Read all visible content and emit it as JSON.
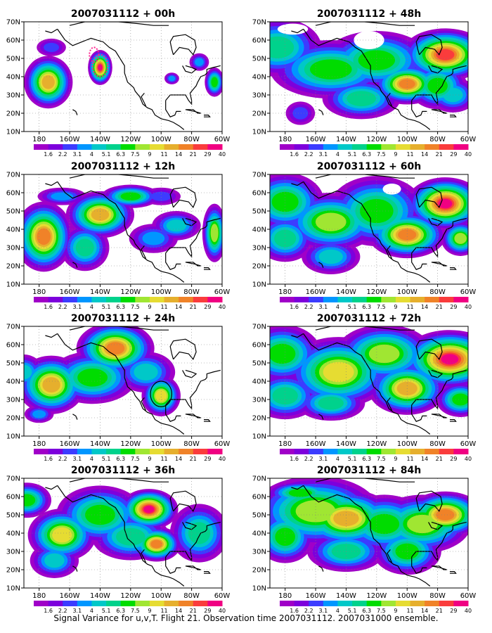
{
  "chart_data": {
    "type": "heatmap",
    "colorbar_labels": [
      "1.6",
      "2.2",
      "3.1",
      "4",
      "5.1",
      "6.3",
      "7.5",
      "9",
      "11",
      "14",
      "21",
      "29",
      "40"
    ],
    "colorbar_colors": [
      "#a000c8",
      "#7d00dc",
      "#3c3cff",
      "#0096ff",
      "#00c8c8",
      "#00d28c",
      "#00dc00",
      "#a0e632",
      "#e6dc32",
      "#e6af2d",
      "#f08228",
      "#fa3c3c",
      "#f00082"
    ],
    "x_ticks": [
      "180",
      "160W",
      "140W",
      "120W",
      "100W",
      "80W",
      "60W"
    ],
    "y_ticks": [
      "70N",
      "60N",
      "50N",
      "40N",
      "30N",
      "20N",
      "10N"
    ],
    "grid": true,
    "panels": [
      {
        "title": "2007031112 + 00h",
        "blobs": [
          [
            -174,
            37,
            10,
            9,
            2.2
          ],
          [
            -140,
            45,
            5,
            6,
            3.0
          ],
          [
            -75,
            48,
            4,
            3,
            0.8
          ],
          [
            -65,
            37,
            4,
            5,
            1.4
          ],
          [
            -93,
            39,
            3,
            2,
            0.7
          ],
          [
            -172,
            56,
            6,
            3,
            0.5
          ]
        ],
        "markers": [
          {
            "type": "dotted-ellipse",
            "lon": -144,
            "lat": 52,
            "rlon": 3,
            "rlat": 4
          },
          {
            "type": "dotted-ellipse",
            "lon": -140,
            "lat": 46,
            "rlon": 5,
            "rlat": 6
          }
        ]
      },
      {
        "title": "2007031112 + 48h",
        "blobs": [
          [
            -185,
            56,
            18,
            10,
            1.2
          ],
          [
            -150,
            44,
            25,
            10,
            1.6
          ],
          [
            -120,
            49,
            22,
            10,
            1.4
          ],
          [
            -100,
            36,
            14,
            7,
            2.6
          ],
          [
            -75,
            52,
            18,
            9,
            2.8
          ],
          [
            -80,
            35,
            12,
            8,
            1.6
          ],
          [
            -70,
            30,
            10,
            6,
            1.0
          ],
          [
            -130,
            28,
            16,
            7,
            1.2
          ],
          [
            -170,
            20,
            6,
            4,
            0.6
          ]
        ],
        "holes": [
          [
            -125,
            60,
            10,
            5
          ],
          [
            -175,
            66,
            10,
            3
          ]
        ]
      },
      {
        "title": "2007031112 + 12h",
        "blobs": [
          [
            -177,
            36,
            12,
            12,
            2.4
          ],
          [
            -140,
            48,
            14,
            8,
            2.2
          ],
          [
            -120,
            58,
            12,
            4,
            1.4
          ],
          [
            -150,
            30,
            10,
            8,
            1.2
          ],
          [
            -65,
            38,
            5,
            10,
            1.8
          ],
          [
            -90,
            42,
            10,
            5,
            0.9
          ],
          [
            -105,
            35,
            10,
            5,
            0.8
          ],
          [
            -165,
            58,
            10,
            3,
            0.7
          ],
          [
            -100,
            58,
            8,
            3,
            0.5
          ]
        ]
      },
      {
        "title": "2007031112 + 60h",
        "blobs": [
          [
            -180,
            55,
            16,
            10,
            1.4
          ],
          [
            -150,
            44,
            20,
            10,
            1.8
          ],
          [
            -120,
            50,
            20,
            12,
            1.6
          ],
          [
            -100,
            37,
            16,
            8,
            2.4
          ],
          [
            -75,
            54,
            16,
            9,
            3.0
          ],
          [
            -65,
            35,
            8,
            6,
            1.8
          ],
          [
            -150,
            25,
            12,
            6,
            1.1
          ],
          [
            -180,
            35,
            12,
            8,
            1.2
          ]
        ],
        "holes": [
          [
            -110,
            62,
            6,
            3
          ]
        ]
      },
      {
        "title": "2007031112 + 24h",
        "blobs": [
          [
            -172,
            38,
            14,
            10,
            2.2
          ],
          [
            -130,
            58,
            16,
            9,
            2.6
          ],
          [
            -145,
            42,
            18,
            9,
            1.4
          ],
          [
            -100,
            32,
            8,
            7,
            1.9
          ],
          [
            -110,
            45,
            12,
            7,
            1.1
          ],
          [
            -190,
            45,
            8,
            6,
            1.0
          ],
          [
            -180,
            22,
            6,
            3,
            0.8
          ]
        ],
        "markers": [
          {
            "type": "circle",
            "lon": -100,
            "lat": 33,
            "rlon": 7,
            "rlat": 7
          }
        ]
      },
      {
        "title": "2007031112 + 72h",
        "blobs": [
          [
            -182,
            55,
            16,
            10,
            1.6
          ],
          [
            -145,
            45,
            22,
            12,
            2.0
          ],
          [
            -115,
            55,
            20,
            10,
            1.8
          ],
          [
            -100,
            36,
            16,
            9,
            2.2
          ],
          [
            -72,
            52,
            20,
            10,
            3.0
          ],
          [
            -150,
            28,
            14,
            6,
            1.2
          ],
          [
            -180,
            32,
            14,
            8,
            1.2
          ],
          [
            -65,
            30,
            10,
            6,
            1.6
          ]
        ]
      },
      {
        "title": "2007031112 + 36h",
        "blobs": [
          [
            -165,
            39,
            14,
            9,
            2.0
          ],
          [
            -140,
            50,
            18,
            10,
            1.4
          ],
          [
            -108,
            53,
            12,
            7,
            3.0
          ],
          [
            -103,
            34,
            10,
            6,
            2.4
          ],
          [
            -188,
            58,
            10,
            6,
            1.4
          ],
          [
            -120,
            38,
            16,
            8,
            1.2
          ],
          [
            -75,
            40,
            12,
            10,
            1.3
          ],
          [
            -170,
            25,
            10,
            6,
            1.0
          ]
        ]
      },
      {
        "title": "2007031112 + 84h",
        "blobs": [
          [
            -160,
            52,
            26,
            12,
            1.8
          ],
          [
            -140,
            48,
            20,
            10,
            2.2
          ],
          [
            -115,
            45,
            18,
            10,
            1.6
          ],
          [
            -90,
            45,
            20,
            10,
            1.8
          ],
          [
            -75,
            50,
            16,
            8,
            2.6
          ],
          [
            -180,
            38,
            12,
            9,
            1.4
          ],
          [
            -140,
            30,
            16,
            7,
            1.3
          ],
          [
            -100,
            30,
            14,
            8,
            1.4
          ],
          [
            -170,
            62,
            14,
            4,
            1.4
          ]
        ]
      }
    ]
  },
  "caption": "Signal Variance for u,v,T. Flight 21. Observation time 2007031112. 2007031000 ensemble."
}
